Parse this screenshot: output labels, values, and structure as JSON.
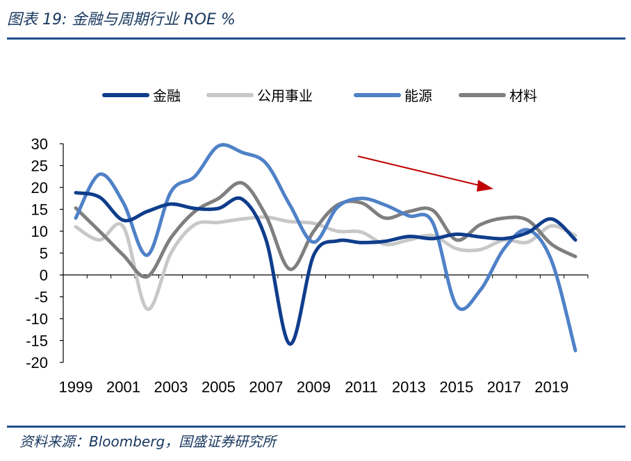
{
  "header": {
    "title": "图表 19:  金融与周期行业 ROE %"
  },
  "footer": {
    "source": "资料来源：Bloomberg，国盛证券研究所"
  },
  "chart_data": {
    "type": "line",
    "title": "",
    "xlabel": "",
    "ylabel": "",
    "x": [
      1999,
      2000,
      2001,
      2002,
      2003,
      2004,
      2005,
      2006,
      2007,
      2008,
      2009,
      2010,
      2011,
      2012,
      2013,
      2014,
      2015,
      2016,
      2017,
      2018,
      2019,
      2020
    ],
    "x_ticks": [
      "1999",
      "2001",
      "2003",
      "2005",
      "2007",
      "2009",
      "2011",
      "2013",
      "2015",
      "2017",
      "2019"
    ],
    "ylim": [
      -20,
      30
    ],
    "y_ticks": [
      "30",
      "25",
      "20",
      "15",
      "10",
      "5",
      "0",
      "-5",
      "-10",
      "-15",
      "-20"
    ],
    "legend_position": "top",
    "grid": false,
    "series": [
      {
        "name": "金融",
        "color": "#0f3d8c",
        "values": [
          18.8,
          17.8,
          12.5,
          14.5,
          16.2,
          15.2,
          15.2,
          17.3,
          8.0,
          -15.8,
          4.5,
          7.8,
          7.4,
          7.7,
          8.8,
          8.3,
          9.3,
          8.7,
          8.3,
          9.7,
          12.8,
          8.0
        ]
      },
      {
        "name": "公用事业",
        "color": "#c8c8c8",
        "values": [
          11.0,
          8.0,
          11.0,
          -7.8,
          5.0,
          11.5,
          12.0,
          12.8,
          13.2,
          12.2,
          11.8,
          10.0,
          9.8,
          7.0,
          8.0,
          9.0,
          6.0,
          5.8,
          8.0,
          7.5,
          11.2,
          9.0
        ]
      },
      {
        "name": "能源",
        "color": "#4f81c7",
        "values": [
          13.0,
          23.0,
          16.5,
          4.5,
          19.0,
          22.5,
          29.5,
          28.0,
          25.5,
          16.0,
          7.5,
          15.5,
          17.5,
          16.0,
          13.5,
          12.0,
          -7.0,
          -3.5,
          6.0,
          10.3,
          3.2,
          -17.3
        ]
      },
      {
        "name": "材料",
        "color": "#7f7f7f",
        "values": [
          15.3,
          10.0,
          4.5,
          -0.4,
          8.5,
          14.5,
          17.5,
          21.0,
          13.5,
          1.3,
          10.0,
          16.0,
          16.5,
          13.0,
          14.5,
          14.8,
          8.0,
          11.5,
          13.0,
          12.5,
          7.0,
          4.2
        ]
      }
    ],
    "annotation": {
      "type": "arrow",
      "color": "#c00000"
    }
  }
}
